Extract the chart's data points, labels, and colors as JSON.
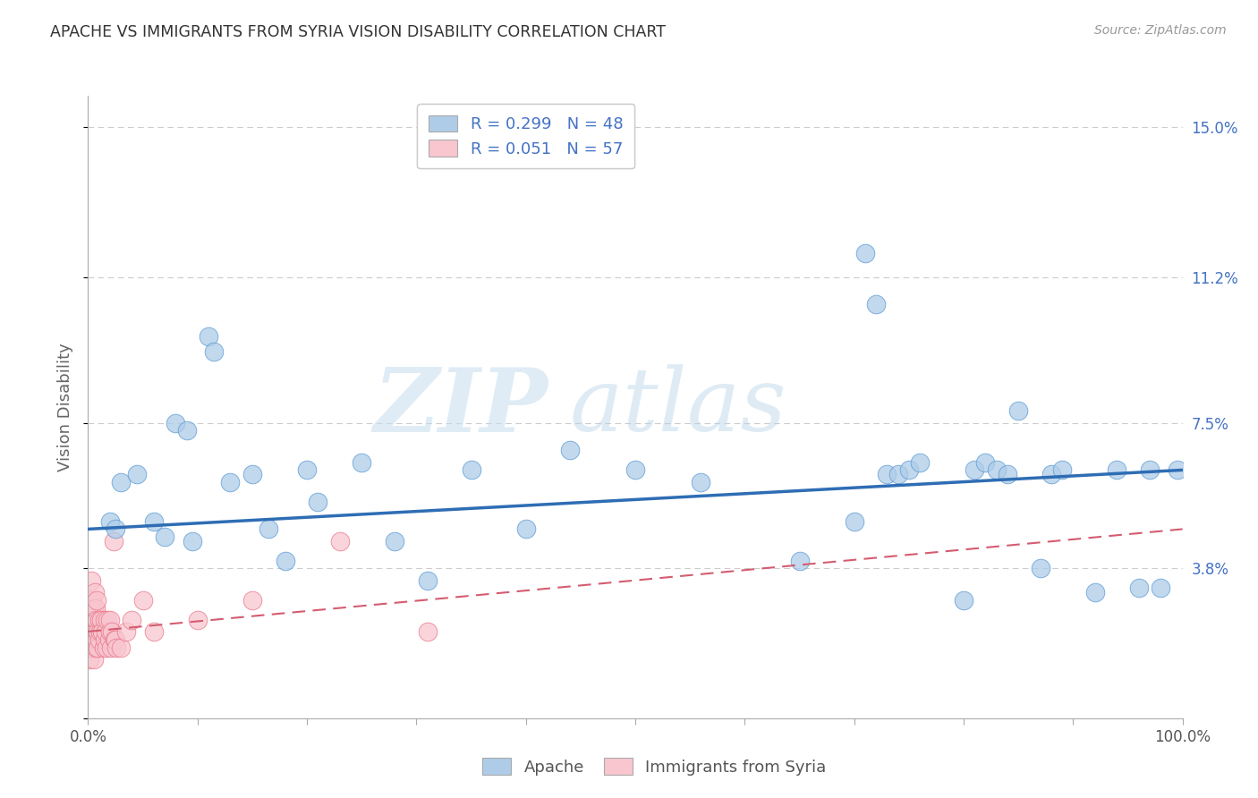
{
  "title": "APACHE VS IMMIGRANTS FROM SYRIA VISION DISABILITY CORRELATION CHART",
  "source": "Source: ZipAtlas.com",
  "ylabel": "Vision Disability",
  "yticks": [
    0.0,
    0.038,
    0.075,
    0.112,
    0.15
  ],
  "ytick_labels": [
    "",
    "3.8%",
    "7.5%",
    "11.2%",
    "15.0%"
  ],
  "xlim": [
    0.0,
    1.0
  ],
  "ylim": [
    0.0,
    0.158
  ],
  "legend_apache_R": "R = 0.299",
  "legend_apache_N": "N = 48",
  "legend_syria_R": "R = 0.051",
  "legend_syria_N": "N = 57",
  "apache_color": "#aecce8",
  "apache_edge_color": "#5b9bd5",
  "apache_line_color": "#2e6db4",
  "syria_color": "#f9c6d0",
  "syria_edge_color": "#e8788a",
  "syria_line_color": "#d45c70",
  "watermark_zip": "ZIP",
  "watermark_atlas": "atlas",
  "apache_x": [
    0.02,
    0.025,
    0.03,
    0.045,
    0.06,
    0.07,
    0.08,
    0.09,
    0.095,
    0.11,
    0.115,
    0.13,
    0.15,
    0.165,
    0.18,
    0.2,
    0.21,
    0.25,
    0.28,
    0.31,
    0.35,
    0.4,
    0.44,
    0.5,
    0.56,
    0.65,
    0.7,
    0.71,
    0.72,
    0.73,
    0.74,
    0.75,
    0.76,
    0.8,
    0.81,
    0.82,
    0.83,
    0.84,
    0.85,
    0.87,
    0.88,
    0.89,
    0.92,
    0.94,
    0.96,
    0.97,
    0.98,
    0.995
  ],
  "apache_y": [
    0.05,
    0.048,
    0.06,
    0.062,
    0.05,
    0.046,
    0.075,
    0.073,
    0.045,
    0.097,
    0.093,
    0.06,
    0.062,
    0.048,
    0.04,
    0.063,
    0.055,
    0.065,
    0.045,
    0.035,
    0.063,
    0.048,
    0.068,
    0.063,
    0.06,
    0.04,
    0.05,
    0.118,
    0.105,
    0.062,
    0.062,
    0.063,
    0.065,
    0.03,
    0.063,
    0.065,
    0.063,
    0.062,
    0.078,
    0.038,
    0.062,
    0.063,
    0.032,
    0.063,
    0.033,
    0.063,
    0.033,
    0.063
  ],
  "syria_x": [
    0.001,
    0.001,
    0.001,
    0.002,
    0.002,
    0.002,
    0.002,
    0.003,
    0.003,
    0.003,
    0.003,
    0.004,
    0.004,
    0.004,
    0.005,
    0.005,
    0.005,
    0.006,
    0.006,
    0.006,
    0.007,
    0.007,
    0.007,
    0.008,
    0.008,
    0.008,
    0.009,
    0.009,
    0.01,
    0.01,
    0.011,
    0.012,
    0.013,
    0.014,
    0.015,
    0.015,
    0.016,
    0.017,
    0.018,
    0.019,
    0.02,
    0.02,
    0.021,
    0.022,
    0.023,
    0.024,
    0.025,
    0.026,
    0.03,
    0.035,
    0.04,
    0.05,
    0.06,
    0.1,
    0.15,
    0.23,
    0.31
  ],
  "syria_y": [
    0.02,
    0.025,
    0.015,
    0.03,
    0.022,
    0.018,
    0.025,
    0.028,
    0.022,
    0.035,
    0.018,
    0.025,
    0.03,
    0.02,
    0.022,
    0.028,
    0.015,
    0.025,
    0.02,
    0.032,
    0.022,
    0.018,
    0.028,
    0.025,
    0.03,
    0.02,
    0.022,
    0.018,
    0.025,
    0.02,
    0.022,
    0.025,
    0.022,
    0.018,
    0.025,
    0.02,
    0.022,
    0.018,
    0.025,
    0.02,
    0.022,
    0.025,
    0.018,
    0.022,
    0.045,
    0.02,
    0.02,
    0.018,
    0.018,
    0.022,
    0.025,
    0.03,
    0.022,
    0.025,
    0.03,
    0.045,
    0.022
  ],
  "apache_trendline_x": [
    0.0,
    1.0
  ],
  "apache_trendline_y": [
    0.048,
    0.063
  ],
  "syria_trendline_x": [
    0.0,
    1.0
  ],
  "syria_trendline_y": [
    0.022,
    0.048
  ],
  "background_color": "#ffffff",
  "grid_color": "#cccccc",
  "title_color": "#333333",
  "axis_label_color": "#666666",
  "right_tick_color": "#4472c4"
}
